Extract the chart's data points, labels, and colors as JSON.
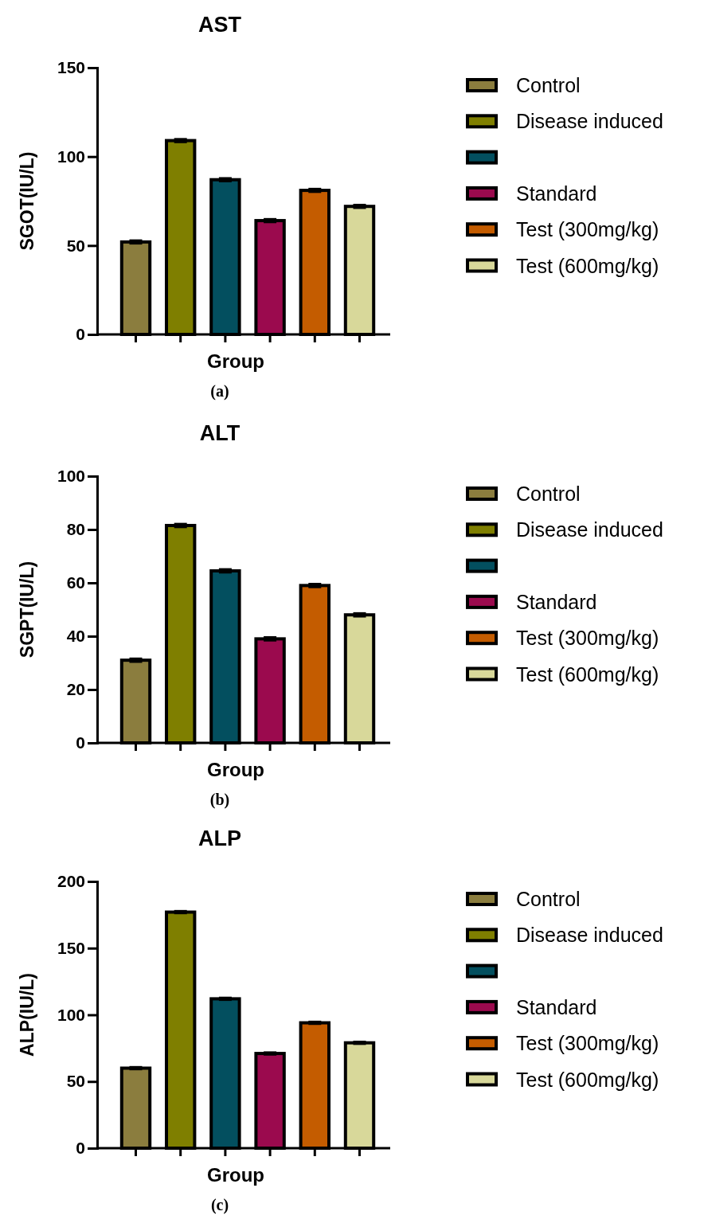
{
  "chart_data": [
    {
      "type": "bar",
      "title": "AST",
      "xlabel": "Group",
      "ylabel": "SGOT(IU/L)",
      "annotations": [
        "(a)"
      ],
      "categories": [
        null,
        null,
        null,
        null,
        null,
        null
      ],
      "ylim": [
        0,
        150
      ],
      "yticks": [
        0,
        50,
        100,
        150
      ],
      "legend": "right",
      "series": [
        {
          "name": "Control",
          "color": "#8b7d3e",
          "values": [
            52,
            null,
            null,
            null,
            null,
            null
          ],
          "errors": [
            1,
            null,
            null,
            null,
            null,
            null
          ]
        },
        {
          "name": "Disease induced",
          "color": "#7f7f00",
          "values": [
            null,
            109,
            null,
            null,
            null,
            null
          ],
          "errors": [
            null,
            1,
            null,
            null,
            null,
            null
          ]
        },
        {
          "color": "#034f5f",
          "values": [
            null,
            null,
            87,
            null,
            null,
            null
          ],
          "errors": [
            null,
            null,
            1,
            null,
            null,
            null
          ]
        },
        {
          "name": "Standard",
          "color": "#9b0a4e",
          "values": [
            null,
            null,
            null,
            64,
            null,
            null
          ],
          "errors": [
            null,
            null,
            null,
            1,
            null,
            null
          ]
        },
        {
          "name": "Test (300mg/kg)",
          "color": "#c45c00",
          "values": [
            null,
            null,
            null,
            null,
            81,
            null
          ],
          "errors": [
            null,
            null,
            null,
            null,
            1,
            null
          ]
        },
        {
          "name": "Test (600mg/kg)",
          "color": "#d8d89a",
          "values": [
            null,
            null,
            null,
            null,
            null,
            72
          ],
          "errors": [
            null,
            null,
            null,
            null,
            null,
            1
          ]
        }
      ]
    },
    {
      "type": "bar",
      "title": "ALT",
      "xlabel": "Group",
      "ylabel": "SGPT(IU/L)",
      "annotations": [
        "(b)"
      ],
      "categories": [
        null,
        null,
        null,
        null,
        null,
        null
      ],
      "ylim": [
        0,
        100
      ],
      "yticks": [
        0,
        20,
        40,
        60,
        80,
        100
      ],
      "legend": "right",
      "series": [
        {
          "name": "Control",
          "color": "#8b7d3e",
          "values": [
            31,
            null,
            null,
            null,
            null,
            null
          ],
          "errors": [
            0.7,
            null,
            null,
            null,
            null,
            null
          ]
        },
        {
          "name": "Disease induced",
          "color": "#7f7f00",
          "values": [
            null,
            81.5,
            null,
            null,
            null,
            null
          ],
          "errors": [
            null,
            0.7,
            null,
            null,
            null,
            null
          ]
        },
        {
          "color": "#034f5f",
          "values": [
            null,
            null,
            64.5,
            null,
            null,
            null
          ],
          "errors": [
            null,
            null,
            0.7,
            null,
            null,
            null
          ]
        },
        {
          "name": "Standard",
          "color": "#9b0a4e",
          "values": [
            null,
            null,
            null,
            39,
            null,
            null
          ],
          "errors": [
            null,
            null,
            null,
            0.7,
            null,
            null
          ]
        },
        {
          "name": "Test (300mg/kg)",
          "color": "#c45c00",
          "values": [
            null,
            null,
            null,
            null,
            59,
            null
          ],
          "errors": [
            null,
            null,
            null,
            null,
            0.7,
            null
          ]
        },
        {
          "name": "Test (600mg/kg)",
          "color": "#d8d89a",
          "values": [
            null,
            null,
            null,
            null,
            null,
            48
          ],
          "errors": [
            null,
            null,
            null,
            null,
            null,
            0.7
          ]
        }
      ]
    },
    {
      "type": "bar",
      "title": "ALP",
      "xlabel": "Group",
      "ylabel": "ALP(IU/L)",
      "annotations": [
        "(c)"
      ],
      "categories": [
        null,
        null,
        null,
        null,
        null,
        null
      ],
      "ylim": [
        0,
        200
      ],
      "yticks": [
        0,
        50,
        100,
        150,
        200
      ],
      "legend": "right",
      "series": [
        {
          "name": "Control",
          "color": "#8b7d3e",
          "values": [
            60,
            null,
            null,
            null,
            null,
            null
          ],
          "errors": [
            1,
            null,
            null,
            null,
            null,
            null
          ]
        },
        {
          "name": "Disease induced",
          "color": "#7f7f00",
          "values": [
            null,
            177,
            null,
            null,
            null,
            null
          ],
          "errors": [
            null,
            1,
            null,
            null,
            null,
            null
          ]
        },
        {
          "color": "#034f5f",
          "values": [
            null,
            null,
            112,
            null,
            null,
            null
          ],
          "errors": [
            null,
            null,
            1,
            null,
            null,
            null
          ]
        },
        {
          "name": "Standard",
          "color": "#9b0a4e",
          "values": [
            null,
            null,
            null,
            71,
            null,
            null
          ],
          "errors": [
            null,
            null,
            null,
            1,
            null,
            null
          ]
        },
        {
          "name": "Test (300mg/kg)",
          "color": "#c45c00",
          "values": [
            null,
            null,
            null,
            null,
            94,
            null
          ],
          "errors": [
            null,
            null,
            null,
            null,
            1,
            null
          ]
        },
        {
          "name": "Test (600mg/kg)",
          "color": "#d8d89a",
          "values": [
            null,
            null,
            null,
            null,
            null,
            79
          ],
          "errors": [
            null,
            null,
            null,
            null,
            null,
            1
          ]
        }
      ]
    }
  ]
}
